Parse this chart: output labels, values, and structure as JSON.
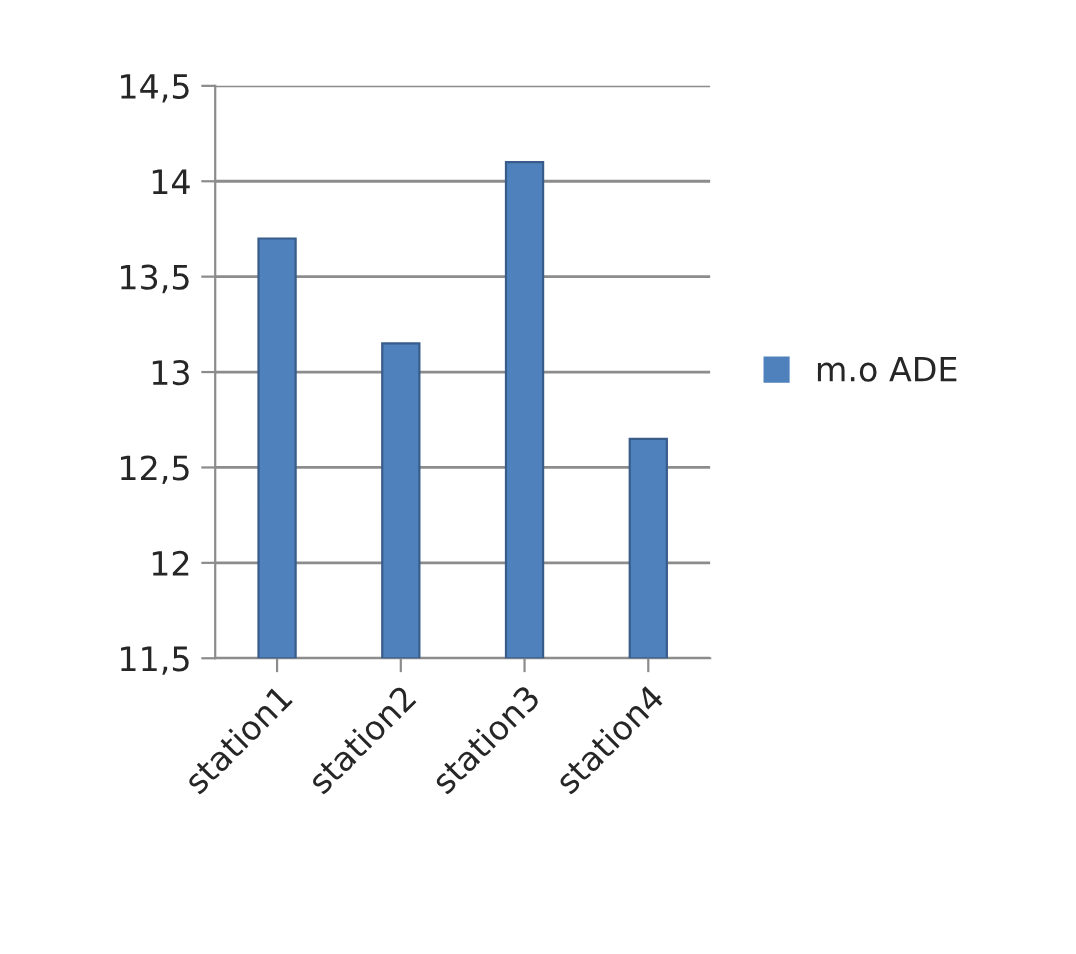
{
  "chart_data": {
    "type": "bar",
    "categories": [
      "station1",
      "station2",
      "station3",
      "station4"
    ],
    "series": [
      {
        "name": "m.o ADE",
        "color": "#4f81bd",
        "values": [
          13.7,
          13.15,
          14.1,
          12.65
        ]
      }
    ],
    "ylim": [
      11.5,
      14.5
    ],
    "yticks": [
      {
        "value": 11.5,
        "label": "11,5"
      },
      12,
      {
        "value": 12.5,
        "label": "12,5"
      },
      13,
      {
        "value": 13.5,
        "label": "13,5"
      },
      14,
      {
        "value": 14.5,
        "label": "14,5"
      }
    ],
    "grid": "y",
    "legend": "right"
  }
}
